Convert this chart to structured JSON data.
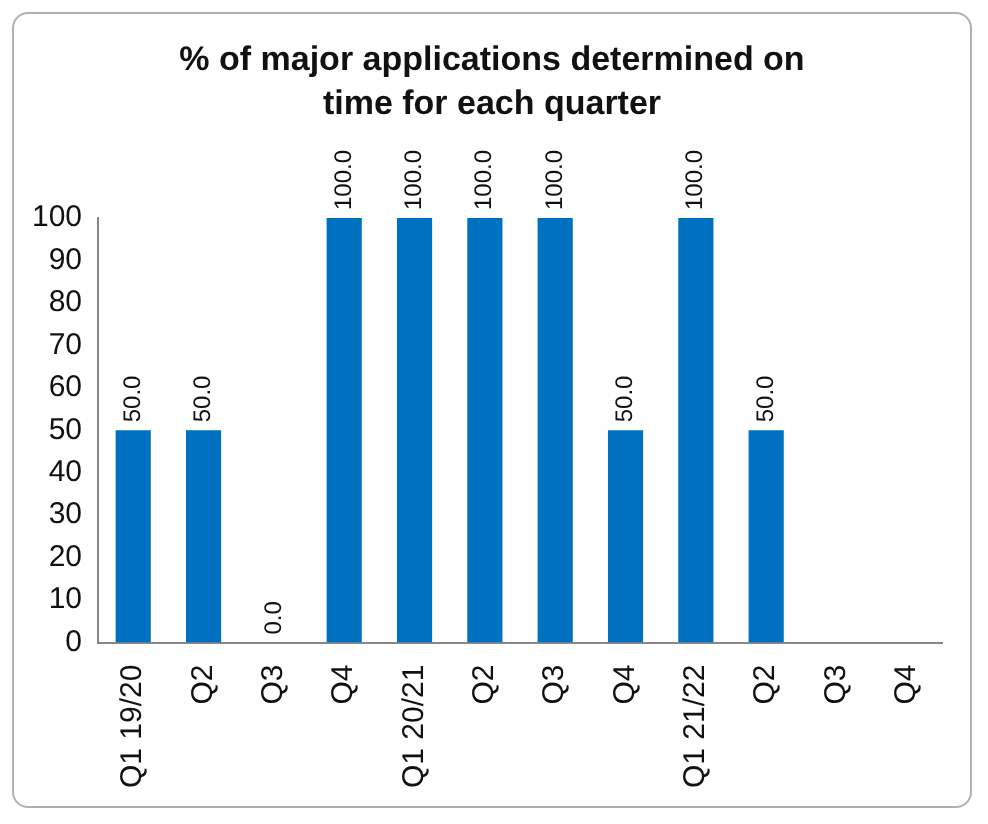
{
  "chart_data": {
    "type": "bar",
    "title": "% of major applications determined on time for each quarter",
    "categories": [
      "Q1 19/20",
      "Q2",
      "Q3",
      "Q4",
      "Q1 20/21",
      "Q2",
      "Q3",
      "Q4",
      "Q1 21/22",
      "Q2",
      "Q3",
      "Q4"
    ],
    "values": [
      50,
      50,
      0,
      100,
      100,
      100,
      100,
      50,
      100,
      50,
      null,
      null
    ],
    "value_labels": [
      "50.0",
      "50.0",
      "0.0",
      "100.0",
      "100.0",
      "100.0",
      "100.0",
      "50.0",
      "100.0",
      "50.0",
      null,
      null
    ],
    "color": "#0070c0",
    "ylim": [
      0,
      100
    ],
    "yticks": [
      0,
      10,
      20,
      30,
      40,
      50,
      60,
      70,
      80,
      90,
      100
    ],
    "grid": false
  }
}
